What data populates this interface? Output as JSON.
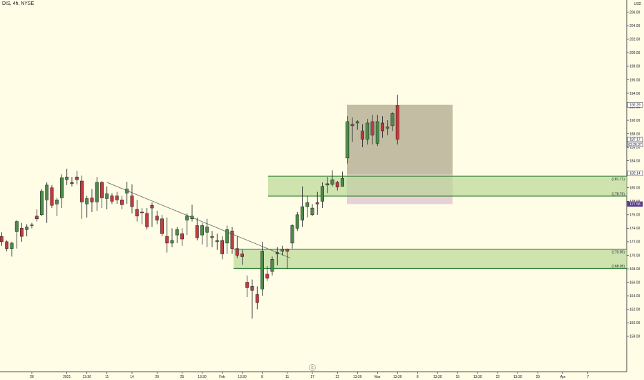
{
  "header": {
    "symbol_line": "DIS, 4h, NYSE"
  },
  "price_axis": {
    "currency": "USD"
  },
  "chart_data": {
    "type": "candlestick",
    "symbol": "DIS",
    "interval": "4h",
    "exchange": "NYSE",
    "ylim": [
      155,
      207
    ],
    "y_ticks": [
      158,
      160,
      162,
      164,
      166,
      168,
      170,
      172,
      174,
      176,
      178,
      180,
      182,
      184,
      186,
      188,
      190,
      192,
      194,
      196,
      198,
      200,
      202,
      204,
      206
    ],
    "x_ticks": [
      {
        "label": "28",
        "bar": 6
      },
      {
        "label": "2021",
        "bar": 13
      },
      {
        "label": "13:30",
        "bar": 17
      },
      {
        "label": "11",
        "bar": 21
      },
      {
        "label": "14",
        "bar": 26
      },
      {
        "label": "20",
        "bar": 31
      },
      {
        "label": "25",
        "bar": 36
      },
      {
        "label": "13:30",
        "bar": 40
      },
      {
        "label": "Feb",
        "bar": 44
      },
      {
        "label": "13:30",
        "bar": 48
      },
      {
        "label": "8",
        "bar": 52
      },
      {
        "label": "11",
        "bar": 57
      },
      {
        "label": "17",
        "bar": 62
      },
      {
        "label": "22",
        "bar": 67
      },
      {
        "label": "13:30",
        "bar": 71
      },
      {
        "label": "Mar",
        "bar": 75
      },
      {
        "label": "13:30",
        "bar": 79
      },
      {
        "label": "8",
        "bar": 83
      },
      {
        "label": "13:30",
        "bar": 87
      },
      {
        "label": "15",
        "bar": 91
      },
      {
        "label": "13:30",
        "bar": 95
      },
      {
        "label": "22",
        "bar": 99
      },
      {
        "label": "13:30",
        "bar": 103
      },
      {
        "label": "29",
        "bar": 107
      },
      {
        "label": "Apr",
        "bar": 112
      },
      {
        "label": "7",
        "bar": 117
      }
    ],
    "candles": [
      [
        172.8,
        173.4,
        171.4,
        172.0
      ],
      [
        172.0,
        172.2,
        170.6,
        171.0
      ],
      [
        171.0,
        172.0,
        169.8,
        171.8
      ],
      [
        173.5,
        175.2,
        171.0,
        175.0
      ],
      [
        174.0,
        174.8,
        172.0,
        172.8
      ],
      [
        173.8,
        174.6,
        172.8,
        174.2
      ],
      [
        174.4,
        174.8,
        174.0,
        174.5
      ],
      [
        175.8,
        176.8,
        175.0,
        175.4
      ],
      [
        176.0,
        179.8,
        175.8,
        179.5
      ],
      [
        178.2,
        180.8,
        174.8,
        180.4
      ],
      [
        180.0,
        180.4,
        177.0,
        177.4
      ],
      [
        177.6,
        178.5,
        175.8,
        178.2
      ],
      [
        178.5,
        182.0,
        177.0,
        181.5
      ],
      [
        181.2,
        182.8,
        180.4,
        181.6
      ],
      [
        180.8,
        181.6,
        180.2,
        180.6
      ],
      [
        181.6,
        182.5,
        180.5,
        181.2
      ],
      [
        181.0,
        181.8,
        175.4,
        177.9
      ],
      [
        177.6,
        178.8,
        175.6,
        178.4
      ],
      [
        178.5,
        179.8,
        176.4,
        177.9
      ],
      [
        177.9,
        181.6,
        176.6,
        180.8
      ],
      [
        180.8,
        181.0,
        177.0,
        178.5
      ],
      [
        178.4,
        180.2,
        176.8,
        179.1
      ],
      [
        178.8,
        179.2,
        177.6,
        178.0
      ],
      [
        178.8,
        179.4,
        177.6,
        178.2
      ],
      [
        178.2,
        178.8,
        176.8,
        177.5
      ],
      [
        179.2,
        180.9,
        177.6,
        179.8
      ],
      [
        178.8,
        180.5,
        176.2,
        177.2
      ],
      [
        176.8,
        178.2,
        175.0,
        175.8
      ],
      [
        176.4,
        177.0,
        174.6,
        176.3
      ],
      [
        176.2,
        177.0,
        173.8,
        174.2
      ],
      [
        177.4,
        177.8,
        174.2,
        177.0
      ],
      [
        175.8,
        176.6,
        174.6,
        175.2
      ],
      [
        175.4,
        176.0,
        172.8,
        173.2
      ],
      [
        172.8,
        175.6,
        170.4,
        171.8
      ],
      [
        171.8,
        174.0,
        171.2,
        172.2
      ],
      [
        173.0,
        174.2,
        171.8,
        173.8
      ],
      [
        173.2,
        174.0,
        171.4,
        172.4
      ],
      [
        175.2,
        176.2,
        173.0,
        175.8
      ],
      [
        175.4,
        177.5,
        175.0,
        175.8
      ],
      [
        174.4,
        175.6,
        172.2,
        172.6
      ],
      [
        173.0,
        174.8,
        171.6,
        174.4
      ],
      [
        173.4,
        175.4,
        171.2,
        174.2
      ],
      [
        172.6,
        173.6,
        171.2,
        172.8
      ],
      [
        172.0,
        173.2,
        170.8,
        172.2
      ],
      [
        172.2,
        172.8,
        169.4,
        170.2
      ],
      [
        171.8,
        174.4,
        170.2,
        173.8
      ],
      [
        173.6,
        174.2,
        170.2,
        171.0
      ],
      [
        171.0,
        172.8,
        169.6,
        170.0
      ],
      [
        170.2,
        170.8,
        168.6,
        169.8
      ],
      [
        166.0,
        167.0,
        163.8,
        165.2
      ],
      [
        165.4,
        166.4,
        160.6,
        164.8
      ],
      [
        164.2,
        165.4,
        162.0,
        163.0
      ],
      [
        165.0,
        172.0,
        164.0,
        170.6
      ],
      [
        167.2,
        168.4,
        166.2,
        166.6
      ],
      [
        167.6,
        169.8,
        167.0,
        169.4
      ],
      [
        170.4,
        171.2,
        168.5,
        170.2
      ],
      [
        170.6,
        171.4,
        170.0,
        170.9
      ],
      [
        170.9,
        171.0,
        168.0,
        170.6
      ],
      [
        171.8,
        174.6,
        171.0,
        174.4
      ],
      [
        174.0,
        176.4,
        173.6,
        176.0
      ],
      [
        175.2,
        180.2,
        174.2,
        177.2
      ],
      [
        177.2,
        178.8,
        175.6,
        177.8
      ],
      [
        176.0,
        177.6,
        175.8,
        177.0
      ],
      [
        177.8,
        179.4,
        176.0,
        177.6
      ],
      [
        178.0,
        180.8,
        177.0,
        180.2
      ],
      [
        180.4,
        181.6,
        179.2,
        180.6
      ],
      [
        180.5,
        182.6,
        180.2,
        181.2
      ],
      [
        180.8,
        181.0,
        179.6,
        180.1
      ],
      [
        180.2,
        182.4,
        180.2,
        181.4
      ],
      [
        184.4,
        190.6,
        183.6,
        189.8
      ],
      [
        189.4,
        190.4,
        186.8,
        189.2
      ],
      [
        189.6,
        190.0,
        188.6,
        189.8
      ],
      [
        188.4,
        189.4,
        186.0,
        187.2
      ],
      [
        187.2,
        190.2,
        186.4,
        189.6
      ],
      [
        189.8,
        190.8,
        186.4,
        187.8
      ],
      [
        186.6,
        190.8,
        186.2,
        189.8
      ],
      [
        189.6,
        190.6,
        187.4,
        188.4
      ],
      [
        188.8,
        190.0,
        187.8,
        189.0
      ],
      [
        189.2,
        191.2,
        188.4,
        191.0
      ],
      [
        192.2,
        193.8,
        186.4,
        187.2
      ]
    ],
    "zones": [
      {
        "top": 181.71,
        "bottom": 178.76,
        "top_label": "(181.71)",
        "bottom_label": "(178.76)",
        "color": "#b5d692"
      },
      {
        "top": 170.9,
        "bottom": 168.05,
        "top_label": "(170.90)",
        "bottom_label": "(168.05)",
        "color": "#b5d692"
      }
    ],
    "position_tool": {
      "target_top": 192.29,
      "entry": 181.96,
      "stop": 177.58,
      "reward_color": "#b9b397",
      "risk_color": "#e6ccd2"
    },
    "trendline": {
      "from": [
        180.8,
        "bar 21"
      ],
      "to": [
        169.6,
        "bar 56"
      ],
      "color": "#6f6f6f"
    },
    "price_labels": [
      {
        "text": "192.29",
        "value": 192.29,
        "bg": "#ffffff",
        "fg": "#131722",
        "border": "#131722"
      },
      {
        "text": "187.17",
        "value": 187.17,
        "bg": "#ffffff",
        "fg": "#131722",
        "border": "#131722"
      },
      {
        "text": "03:26:37",
        "value": 186.4,
        "bg": "#ffffff",
        "fg": "#131722",
        "border": "#131722"
      },
      {
        "text": "182.14",
        "value": 182.14,
        "bg": "#ffffff",
        "fg": "#131722",
        "border": "#131722"
      },
      {
        "text": "177.58",
        "value": 177.58,
        "bg": "#5b3b8c",
        "fg": "#ffffff",
        "border": "#5b3b8c"
      }
    ],
    "colors": {
      "background": "#fffde6",
      "up_body": "#4c8c45",
      "down_body": "#c23b3b",
      "wick": "#131722",
      "zone_line": "#2e7d32"
    },
    "grid": false,
    "legend": "none"
  },
  "footer": {
    "event_marker": "E"
  }
}
